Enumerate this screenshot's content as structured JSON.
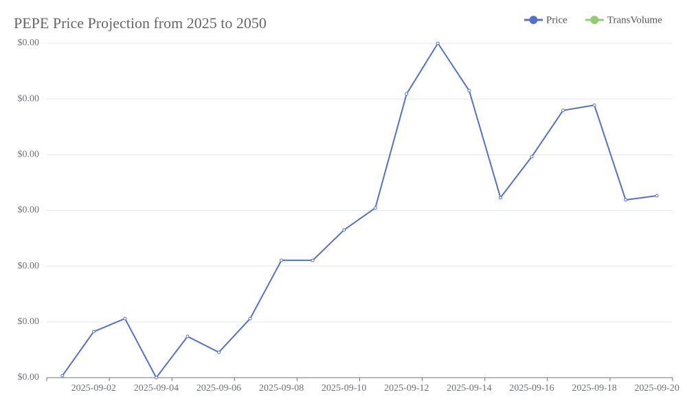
{
  "chart_data": {
    "type": "line",
    "title": "PEPE Price Projection from 2025 to 2050",
    "categories": [
      null,
      "2025-09-02",
      null,
      "2025-09-04",
      null,
      "2025-09-06",
      null,
      "2025-09-08",
      null,
      "2025-09-10",
      null,
      "2025-09-12",
      null,
      "2025-09-14",
      null,
      "2025-09-16",
      null,
      "2025-09-18",
      null,
      "2025-09-20"
    ],
    "series": [
      {
        "name": "Price",
        "color": "#5470c6",
        "values": [
          7e-08,
          1.65e-06,
          2.12e-06,
          0,
          1.48e-06,
          9.1e-07,
          2.12e-06,
          4.21e-06,
          4.21e-06,
          5.3e-06,
          6.09e-06,
          1.018e-05,
          1.2e-05,
          1.03e-05,
          6.46e-06,
          7.93e-06,
          9.59e-06,
          9.78e-06,
          6.38e-06,
          6.53e-06
        ]
      },
      {
        "name": "TransVolume",
        "color": "#91cc75",
        "values": [
          null,
          null,
          null,
          null,
          null,
          null,
          null,
          null,
          null,
          null,
          null,
          null,
          null,
          null,
          null,
          null,
          null,
          null,
          null,
          null
        ]
      }
    ],
    "ylim": [
      0,
      1.2e-05
    ],
    "yticks": [
      {
        "value": 0,
        "label": "$0.00"
      },
      {
        "value": 2e-06,
        "label": "$0.00"
      },
      {
        "value": 4e-06,
        "label": "$0.00"
      },
      {
        "value": 6e-06,
        "label": "$0.00"
      },
      {
        "value": 8e-06,
        "label": "$0.00"
      },
      {
        "value": 1e-05,
        "label": "$0.00"
      },
      {
        "value": 1.2e-05,
        "label": "$0.00"
      }
    ],
    "grid": true,
    "legend": "top-right"
  }
}
